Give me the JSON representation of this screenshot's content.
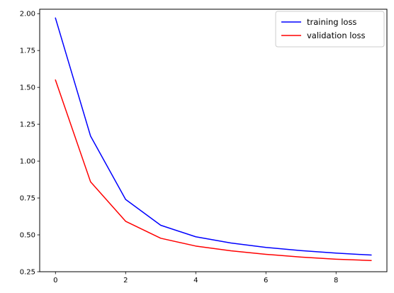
{
  "chart_data": {
    "type": "line",
    "title": "",
    "xlabel": "",
    "ylabel": "",
    "xlim": [
      -0.45,
      9.45
    ],
    "ylim": [
      0.25,
      2.03
    ],
    "x": [
      0,
      1,
      2,
      3,
      4,
      5,
      6,
      7,
      8,
      9
    ],
    "x_ticks": [
      0,
      2,
      4,
      6,
      8
    ],
    "x_tick_labels": [
      "0",
      "2",
      "4",
      "6",
      "8"
    ],
    "y_ticks": [
      0.25,
      0.5,
      0.75,
      1.0,
      1.25,
      1.5,
      1.75,
      2.0
    ],
    "y_tick_labels": [
      "0.25",
      "0.50",
      "0.75",
      "1.00",
      "1.25",
      "1.50",
      "1.75",
      "2.00"
    ],
    "grid": false,
    "legend_position": "top-right",
    "series": [
      {
        "name": "training loss",
        "color": "#0000ff",
        "values": [
          1.97,
          1.17,
          0.74,
          0.565,
          0.487,
          0.445,
          0.415,
          0.393,
          0.376,
          0.363
        ]
      },
      {
        "name": "validation loss",
        "color": "#ff0000",
        "values": [
          1.55,
          0.86,
          0.592,
          0.477,
          0.424,
          0.392,
          0.368,
          0.349,
          0.335,
          0.326
        ]
      }
    ]
  }
}
